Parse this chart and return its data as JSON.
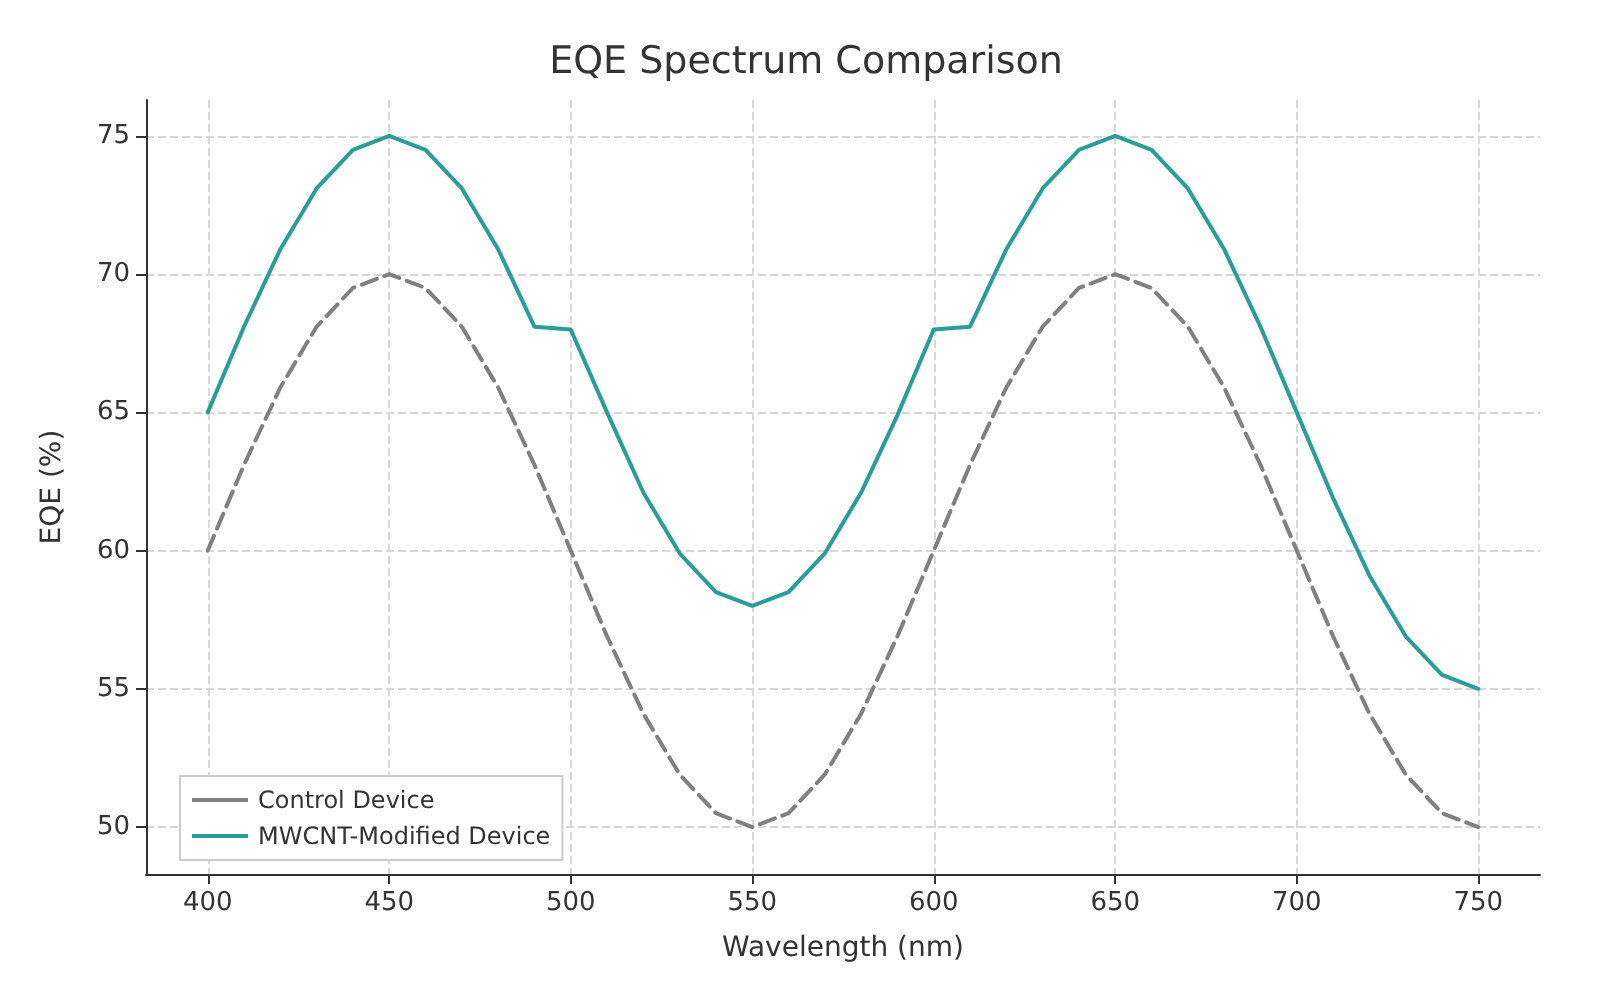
{
  "chart_data": {
    "type": "line",
    "title": "EQE Spectrum Comparison",
    "xlabel": "Wavelength (nm)",
    "ylabel": "EQE (%)",
    "x": [
      400,
      410,
      420,
      430,
      440,
      450,
      460,
      470,
      480,
      490,
      500,
      510,
      520,
      530,
      540,
      550,
      560,
      570,
      580,
      590,
      600,
      610,
      620,
      630,
      640,
      650,
      660,
      670,
      680,
      690,
      700,
      710,
      720,
      730,
      740,
      750
    ],
    "series": [
      {
        "name": "Control Device",
        "color": "#808080",
        "line_style": "dashed",
        "values": [
          60,
          63.1,
          65.9,
          68.1,
          69.5,
          70,
          69.5,
          68.1,
          65.9,
          63.1,
          60,
          56.9,
          54.1,
          51.9,
          50.5,
          50,
          50.5,
          51.9,
          54.1,
          56.9,
          60,
          63.1,
          65.9,
          68.1,
          69.5,
          70,
          69.5,
          68.1,
          65.9,
          63.1,
          60,
          56.9,
          54.1,
          51.9,
          50.5,
          50
        ]
      },
      {
        "name": "MWCNT-Modified Device",
        "color": "#2a9d9a",
        "line_style": "solid",
        "values": [
          65,
          68.1,
          70.9,
          73.1,
          74.5,
          75,
          74.5,
          73.1,
          70.9,
          68.1,
          68,
          65,
          62.1,
          59.9,
          58.5,
          58,
          58.5,
          59.9,
          62.1,
          64.9,
          68,
          68.1,
          70.9,
          73.1,
          74.5,
          75,
          74.5,
          73.1,
          70.9,
          68.1,
          65,
          61.9,
          59.1,
          56.9,
          55.5,
          55
        ]
      }
    ],
    "xlim": [
      383,
      767
    ],
    "xticks": [
      400,
      450,
      500,
      550,
      600,
      650,
      700,
      750
    ],
    "ylim": [
      48.3,
      76.3
    ],
    "yticks": [
      50,
      55,
      60,
      65,
      70,
      75
    ],
    "grid": true,
    "legend": "bottom left",
    "marker": "none"
  }
}
